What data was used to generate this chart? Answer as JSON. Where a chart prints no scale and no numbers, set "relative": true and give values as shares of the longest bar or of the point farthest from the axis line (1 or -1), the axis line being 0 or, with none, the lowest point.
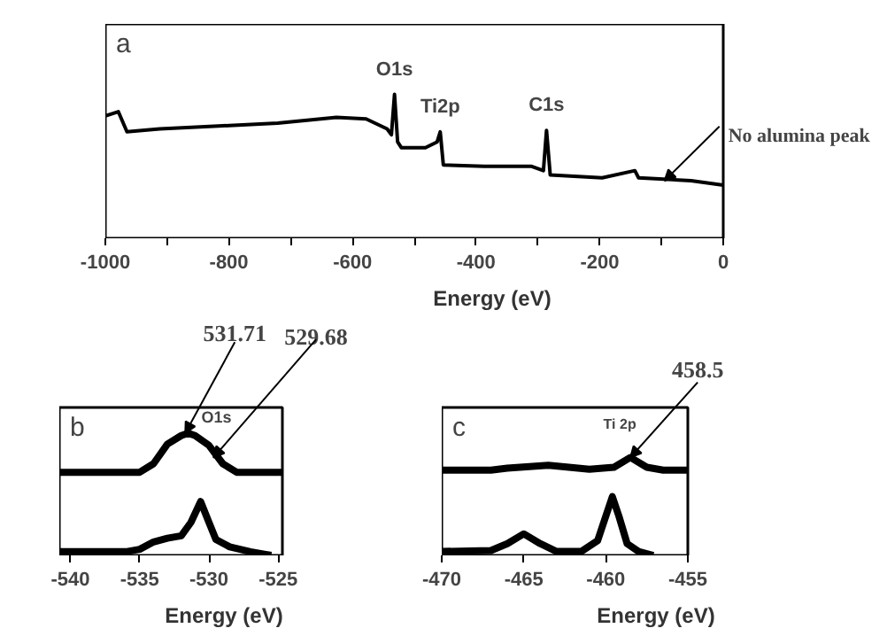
{
  "chart_data": [
    {
      "type": "line",
      "relative": true,
      "title": "a",
      "xlabel": "Energy (eV)",
      "xlim": [
        -1000,
        0
      ],
      "xticks": [
        -1000,
        {
          "value": -900,
          "label": null
        },
        -800,
        {
          "value": -700,
          "label": null
        },
        -600,
        {
          "value": -500,
          "label": null
        },
        -400,
        {
          "value": -300,
          "label": null
        },
        -200,
        {
          "value": -100,
          "label": null
        },
        0
      ],
      "series": [
        {
          "color": "#000000",
          "x": [
            -1000,
            -979,
            -965,
            -912,
            -817,
            -721,
            -626,
            -578,
            -544,
            -537,
            -532,
            -527,
            -521,
            -482,
            -463,
            -458,
            -453,
            -387,
            -310,
            -291,
            -286,
            -280,
            -196,
            -143,
            -137,
            -52,
            0
          ],
          "values": [
            0.85,
            0.88,
            0.74,
            0.76,
            0.78,
            0.8,
            0.84,
            0.83,
            0.76,
            0.72,
            1.0,
            0.67,
            0.63,
            0.63,
            0.67,
            0.74,
            0.51,
            0.5,
            0.5,
            0.47,
            0.75,
            0.44,
            0.42,
            0.47,
            0.42,
            0.4,
            0.37
          ]
        }
      ],
      "annotations": [
        {
          "text": "O1s",
          "x": -532,
          "y": 1.0
        },
        {
          "text": "Ti2p",
          "x": -458,
          "y": 0.74
        },
        {
          "text": "C1s",
          "x": -286,
          "y": 0.75
        },
        {
          "text": "No alumina peak",
          "x": -95,
          "y": 0.4
        }
      ]
    },
    {
      "type": "line",
      "relative": true,
      "title": "b",
      "xlabel": "Energy (eV)",
      "xlim": [
        -540.8,
        -524.7
      ],
      "xticks": [
        -540,
        -535,
        -530,
        -525
      ],
      "series": [
        {
          "color": "#000000",
          "x": [
            -540.8,
            -535,
            -534,
            -533,
            -532,
            -531.5,
            -531,
            -530,
            -529,
            -528,
            -524.7
          ],
          "values": [
            0.68,
            0.68,
            0.75,
            0.91,
            0.98,
            1.0,
            0.98,
            0.9,
            0.75,
            0.68,
            0.68
          ]
        },
        {
          "color": "#000000",
          "x": [
            -540.8,
            -536,
            -535,
            -534,
            -533,
            -532,
            -531.3,
            -530.6,
            -530,
            -529.5,
            -528.5,
            -527,
            -526,
            -525.5
          ],
          "values": [
            0.03,
            0.03,
            0.05,
            0.11,
            0.14,
            0.16,
            0.27,
            0.44,
            0.27,
            0.13,
            0.07,
            0.03,
            0.01,
            0.0
          ]
        }
      ],
      "annotations": [
        {
          "text": "O1s",
          "x": -531.5,
          "y": 1.0
        },
        {
          "text": "531.71",
          "x": -531.71,
          "y": 1.0
        },
        {
          "text": "529.68",
          "x": -529.68,
          "y": 0.8
        }
      ]
    },
    {
      "type": "line",
      "relative": true,
      "title": "c",
      "xlabel": "Energy (eV)",
      "xlim": [
        -470,
        -455
      ],
      "xticks": [
        -470,
        -465,
        -460,
        -455
      ],
      "series": [
        {
          "color": "#000000",
          "x": [
            -470,
            -467,
            -466,
            -463.5,
            -461,
            -459.5,
            -458.5,
            -457.5,
            -456.5,
            -455
          ],
          "values": [
            0.87,
            0.87,
            0.89,
            0.92,
            0.88,
            0.9,
            1.0,
            0.9,
            0.87,
            0.87
          ]
        },
        {
          "color": "#000000",
          "x": [
            -470,
            -467,
            -466,
            -465,
            -464,
            -463,
            -461.5,
            -460.5,
            -460,
            -459.6,
            -459.2,
            -458.7,
            -458,
            -457.1
          ],
          "values": [
            0.04,
            0.05,
            0.12,
            0.22,
            0.12,
            0.04,
            0.04,
            0.15,
            0.4,
            0.6,
            0.4,
            0.12,
            0.04,
            0.0
          ]
        }
      ],
      "annotations": [
        {
          "text": "Ti 2p",
          "x": -458.5,
          "y": 1.0
        },
        {
          "text": "458.5",
          "x": -458.5,
          "y": 1.0
        }
      ]
    }
  ]
}
